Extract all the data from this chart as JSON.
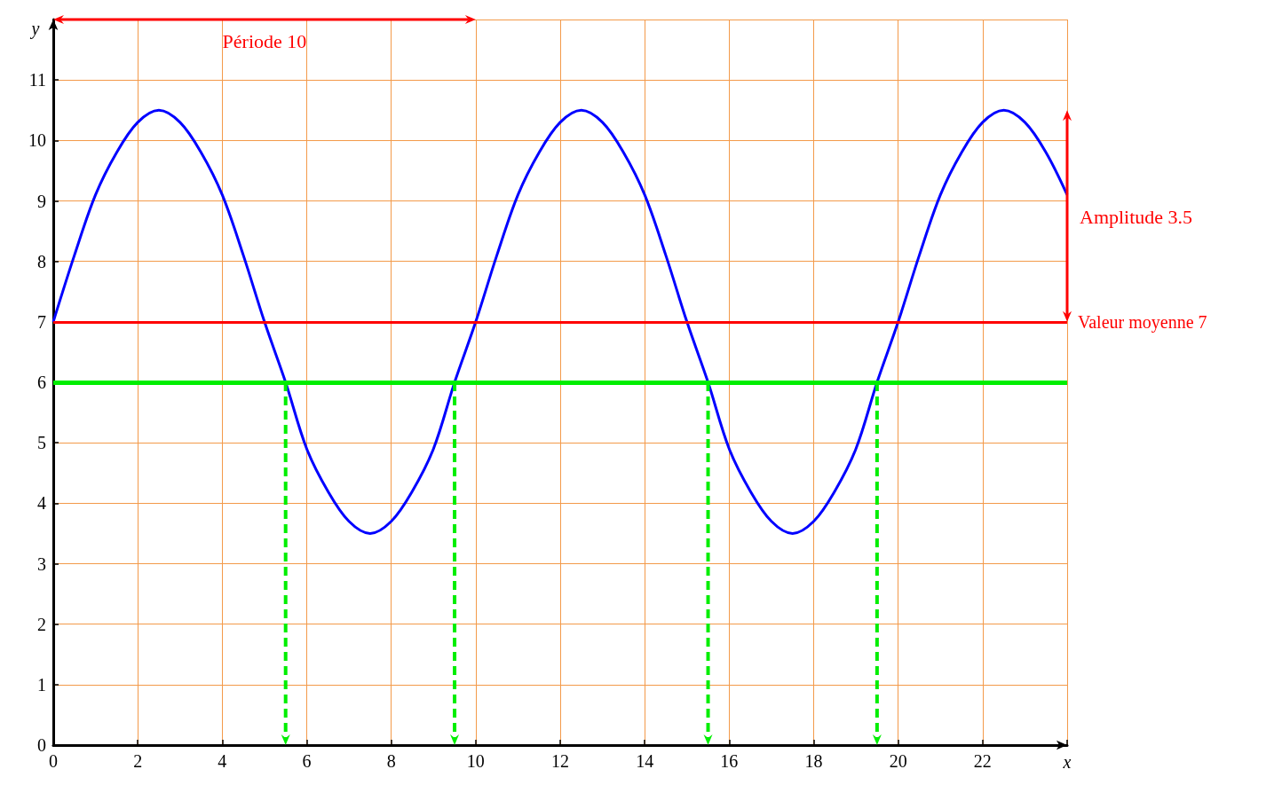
{
  "chart_data": {
    "type": "line",
    "xlabel": "x",
    "ylabel": "y",
    "xlim": [
      0,
      24
    ],
    "xticks": [
      0,
      2,
      4,
      6,
      8,
      10,
      12,
      14,
      16,
      18,
      20,
      22,
      {
        "value": 24,
        "label": null
      }
    ],
    "ylim": [
      0,
      12
    ],
    "yticks": [
      0,
      1,
      2,
      3,
      4,
      5,
      6,
      7,
      8,
      9,
      10,
      11,
      {
        "value": 12,
        "label": null
      }
    ],
    "grid": true,
    "marker": "none",
    "line_style": "solid",
    "series": [
      {
        "color": "#0000ff",
        "x": [
          0,
          0.5,
          1,
          1.5,
          2,
          2.5,
          3,
          3.5,
          4,
          4.5,
          5,
          5.5,
          6,
          6.5,
          7,
          7.5,
          8,
          8.5,
          9,
          9.5,
          10,
          10.5,
          11,
          11.5,
          12,
          12.5,
          13,
          13.5,
          14,
          14.5,
          15,
          15.5,
          16,
          16.5,
          17,
          17.5,
          18,
          18.5,
          19,
          19.5,
          20,
          20.5,
          21,
          21.5,
          22,
          22.5,
          23,
          23.5,
          24
        ],
        "values": [
          7,
          8.1,
          9.1,
          9.8,
          10.3,
          10.5,
          10.3,
          9.8,
          9.1,
          8.1,
          7,
          6,
          4.9,
          4.2,
          3.7,
          3.5,
          3.7,
          4.2,
          4.9,
          6,
          7,
          8.1,
          9.1,
          9.8,
          10.3,
          10.5,
          10.3,
          9.8,
          9.1,
          8.1,
          7,
          6,
          4.9,
          4.2,
          3.7,
          3.5,
          3.7,
          4.2,
          4.9,
          6,
          7,
          8.1,
          9.1,
          9.8,
          10.3,
          10.5,
          10.3,
          9.8,
          9.1
        ]
      }
    ],
    "ref_lines": [
      {
        "axis": "y",
        "value": 7,
        "label": "Valeur moyenne 7",
        "color": "#ff0000"
      },
      {
        "axis": "y",
        "value": 6,
        "label": null,
        "color": "#00ee00"
      }
    ],
    "annotations": [
      "Période 10",
      "Amplitude 3.5"
    ]
  }
}
